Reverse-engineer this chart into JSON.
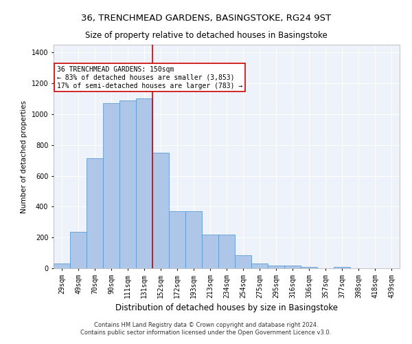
{
  "title": "36, TRENCHMEAD GARDENS, BASINGSTOKE, RG24 9ST",
  "subtitle": "Size of property relative to detached houses in Basingstoke",
  "xlabel": "Distribution of detached houses by size in Basingstoke",
  "ylabel": "Number of detached properties",
  "categories": [
    "29sqm",
    "49sqm",
    "70sqm",
    "90sqm",
    "111sqm",
    "131sqm",
    "152sqm",
    "172sqm",
    "193sqm",
    "213sqm",
    "234sqm",
    "254sqm",
    "275sqm",
    "295sqm",
    "316sqm",
    "336sqm",
    "357sqm",
    "377sqm",
    "398sqm",
    "418sqm",
    "439sqm"
  ],
  "bar_values": [
    30,
    235,
    715,
    1070,
    1090,
    1100,
    750,
    370,
    370,
    220,
    220,
    85,
    30,
    20,
    20,
    10,
    0,
    10,
    0,
    0,
    0
  ],
  "bar_color": "#aec6e8",
  "bar_edge_color": "#5b9bd5",
  "vline_color": "#cc0000",
  "annotation_text": "36 TRENCHMEAD GARDENS: 150sqm\n← 83% of detached houses are smaller (3,853)\n17% of semi-detached houses are larger (783) →",
  "annotation_box_color": "#cc0000",
  "ylim": [
    0,
    1450
  ],
  "yticks": [
    0,
    200,
    400,
    600,
    800,
    1000,
    1200,
    1400
  ],
  "footer_line1": "Contains HM Land Registry data © Crown copyright and database right 2024.",
  "footer_line2": "Contains public sector information licensed under the Open Government Licence v3.0.",
  "bg_color": "#eef2fb",
  "grid_color": "#ffffff",
  "title_fontsize": 9.5,
  "subtitle_fontsize": 8.5,
  "ylabel_fontsize": 7.5,
  "xlabel_fontsize": 8.5,
  "tick_fontsize": 7,
  "footer_fontsize": 6,
  "annot_fontsize": 7
}
